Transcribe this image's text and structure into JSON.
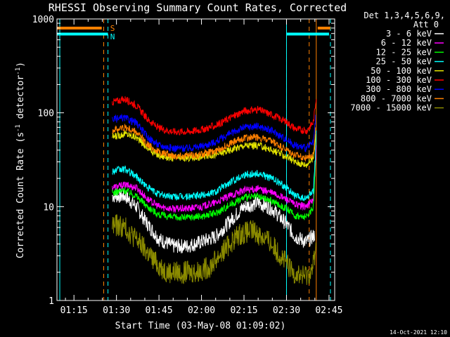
{
  "chart_data": {
    "type": "line",
    "title": "RHESSI Observing Summary Count Rates, Corrected",
    "xlabel": "Start Time (03-May-08 01:09:02)",
    "ylabel_main": "Corrected Count Rate (s",
    "ylabel_sup1": "-1",
    "ylabel_mid": " detector",
    "ylabel_sup2": "-1",
    "ylabel_end": ")",
    "yscale": "log",
    "ylim": [
      1,
      1000
    ],
    "xlim_min": [
      69,
      167
    ],
    "x_ticks": [
      {
        "min": 75,
        "label": "01:15"
      },
      {
        "min": 90,
        "label": "01:30"
      },
      {
        "min": 105,
        "label": "01:45"
      },
      {
        "min": 120,
        "label": "02:00"
      },
      {
        "min": 135,
        "label": "02:15"
      },
      {
        "min": 150,
        "label": "02:30"
      },
      {
        "min": 165,
        "label": "02:45"
      }
    ],
    "y_ticks": [
      {
        "v": 1,
        "label": "1"
      },
      {
        "v": 10,
        "label": "10"
      },
      {
        "v": 100,
        "label": "100"
      },
      {
        "v": 1000,
        "label": "1000"
      }
    ],
    "legend_header": [
      "Det 1,3,4,5,6,9,",
      "Att 0"
    ],
    "legend_placement": "right",
    "series": [
      {
        "name": "3 - 6 keV",
        "color": "#ffffff",
        "points": [
          [
            88.5,
            13
          ],
          [
            93,
            13
          ],
          [
            97,
            10
          ],
          [
            101,
            6.5
          ],
          [
            105,
            4.5
          ],
          [
            110,
            3.8
          ],
          [
            115,
            3.8
          ],
          [
            120,
            4.2
          ],
          [
            125,
            4.8
          ],
          [
            130,
            7
          ],
          [
            135,
            10
          ],
          [
            140,
            11
          ],
          [
            145,
            9.5
          ],
          [
            150,
            6.5
          ],
          [
            153,
            4.8
          ],
          [
            157,
            4.2
          ],
          [
            160,
            5
          ]
        ]
      },
      {
        "name": "6 - 12 keV",
        "color": "#ff00ff",
        "points": [
          [
            88.5,
            16
          ],
          [
            93,
            17
          ],
          [
            97,
            16
          ],
          [
            101,
            12
          ],
          [
            105,
            10
          ],
          [
            110,
            9.5
          ],
          [
            115,
            9.5
          ],
          [
            120,
            10
          ],
          [
            125,
            11
          ],
          [
            130,
            13
          ],
          [
            135,
            15
          ],
          [
            140,
            15.5
          ],
          [
            145,
            14
          ],
          [
            150,
            12
          ],
          [
            153,
            10.5
          ],
          [
            157,
            10
          ],
          [
            159.5,
            12
          ],
          [
            160.3,
            30
          ],
          [
            160.6,
            60
          ]
        ]
      },
      {
        "name": "12 - 25 keV",
        "color": "#00ff00",
        "points": [
          [
            88.5,
            14
          ],
          [
            93,
            15
          ],
          [
            97,
            13
          ],
          [
            101,
            10
          ],
          [
            105,
            8.2
          ],
          [
            110,
            7.7
          ],
          [
            115,
            7.7
          ],
          [
            120,
            7.9
          ],
          [
            125,
            8.5
          ],
          [
            130,
            10.5
          ],
          [
            135,
            12.5
          ],
          [
            140,
            12.8
          ],
          [
            145,
            11.5
          ],
          [
            150,
            9.5
          ],
          [
            153,
            8
          ],
          [
            157,
            7.7
          ],
          [
            159.5,
            10
          ],
          [
            160.3,
            35
          ]
        ]
      },
      {
        "name": "25 - 50 keV",
        "color": "#00ffff",
        "points": [
          [
            88.5,
            24
          ],
          [
            93,
            25
          ],
          [
            97,
            21
          ],
          [
            101,
            16
          ],
          [
            105,
            13.5
          ],
          [
            110,
            12.8
          ],
          [
            115,
            12.8
          ],
          [
            120,
            13.2
          ],
          [
            125,
            14.5
          ],
          [
            130,
            18
          ],
          [
            135,
            22
          ],
          [
            140,
            22.5
          ],
          [
            145,
            20
          ],
          [
            150,
            16
          ],
          [
            153,
            13
          ],
          [
            157,
            12
          ],
          [
            159.5,
            15
          ],
          [
            160.3,
            40
          ],
          [
            160.6,
            80
          ]
        ]
      },
      {
        "name": "50 - 100 keV",
        "color": "#e6e600",
        "points": [
          [
            88.5,
            55
          ],
          [
            93,
            60
          ],
          [
            97,
            55
          ],
          [
            101,
            42
          ],
          [
            105,
            35
          ],
          [
            110,
            33
          ],
          [
            115,
            33
          ],
          [
            120,
            34
          ],
          [
            125,
            36
          ],
          [
            130,
            40
          ],
          [
            135,
            45
          ],
          [
            140,
            45
          ],
          [
            145,
            40
          ],
          [
            150,
            34
          ],
          [
            153,
            30
          ],
          [
            157,
            28
          ],
          [
            159.5,
            33
          ],
          [
            160.3,
            60
          ]
        ]
      },
      {
        "name": "100 - 300 keV",
        "color": "#ff0000",
        "points": [
          [
            88.5,
            130
          ],
          [
            93,
            140
          ],
          [
            97,
            120
          ],
          [
            101,
            85
          ],
          [
            105,
            68
          ],
          [
            110,
            63
          ],
          [
            115,
            63
          ],
          [
            120,
            66
          ],
          [
            125,
            73
          ],
          [
            130,
            88
          ],
          [
            135,
            105
          ],
          [
            140,
            108
          ],
          [
            145,
            95
          ],
          [
            150,
            80
          ],
          [
            153,
            68
          ],
          [
            157,
            64
          ],
          [
            159.5,
            80
          ],
          [
            160.3,
            130
          ],
          [
            160.6,
            165
          ]
        ]
      },
      {
        "name": "300 - 800 keV",
        "color": "#0000ff",
        "points": [
          [
            88.5,
            85
          ],
          [
            93,
            88
          ],
          [
            97,
            78
          ],
          [
            101,
            55
          ],
          [
            105,
            45
          ],
          [
            110,
            42
          ],
          [
            115,
            42
          ],
          [
            120,
            44
          ],
          [
            125,
            49
          ],
          [
            130,
            60
          ],
          [
            135,
            70
          ],
          [
            140,
            72
          ],
          [
            145,
            64
          ],
          [
            150,
            52
          ],
          [
            153,
            45
          ],
          [
            157,
            42
          ],
          [
            159.5,
            48
          ],
          [
            160.3,
            90
          ]
        ]
      },
      {
        "name": "800 - 7000 keV",
        "color": "#ff8000",
        "points": [
          [
            88.5,
            65
          ],
          [
            93,
            70
          ],
          [
            97,
            62
          ],
          [
            101,
            46
          ],
          [
            105,
            38
          ],
          [
            110,
            35
          ],
          [
            115,
            35
          ],
          [
            120,
            36
          ],
          [
            125,
            39
          ],
          [
            130,
            47
          ],
          [
            135,
            54
          ],
          [
            140,
            55
          ],
          [
            145,
            49
          ],
          [
            150,
            40
          ],
          [
            153,
            35
          ],
          [
            157,
            33
          ],
          [
            159.5,
            37
          ],
          [
            160.3,
            70
          ]
        ]
      },
      {
        "name": "7000 - 15000 keV",
        "color": "#8b8b00",
        "points": [
          [
            88.5,
            6.5
          ],
          [
            93,
            6
          ],
          [
            97,
            4.5
          ],
          [
            101,
            3.2
          ],
          [
            104,
            2.5
          ],
          [
            108,
            2
          ],
          [
            112,
            2
          ],
          [
            118,
            2
          ],
          [
            123,
            2.3
          ],
          [
            128,
            3.5
          ],
          [
            133,
            5
          ],
          [
            138,
            5.5
          ],
          [
            143,
            4.5
          ],
          [
            148,
            3
          ],
          [
            152,
            2
          ],
          [
            156,
            1.8
          ],
          [
            159,
            2
          ],
          [
            160.5,
            4
          ]
        ]
      }
    ],
    "annotations": {
      "attenuator_labels": [
        {
          "text": "S",
          "color": "#ff8000"
        },
        {
          "text": "N",
          "color": "#00ffff"
        }
      ],
      "saa_vlines_min": [
        85.5,
        87.0,
        150.0,
        158.0,
        165.5
      ],
      "saa_solid_vlines_min": [
        70.0,
        150.0,
        160.5
      ],
      "flag_segments": [
        {
          "color": "#ff8000",
          "y": 800,
          "from": 69,
          "to": 84.8
        },
        {
          "color": "#00ffff",
          "y": 690,
          "from": 69,
          "to": 87.0
        },
        {
          "color": "#00ffff",
          "y": 690,
          "from": 150,
          "to": 165
        },
        {
          "color": "#ff8000",
          "y": 800,
          "from": 161,
          "to": 165.5
        }
      ]
    }
  },
  "footer_timestamp": "14-Oct-2021 12:10"
}
